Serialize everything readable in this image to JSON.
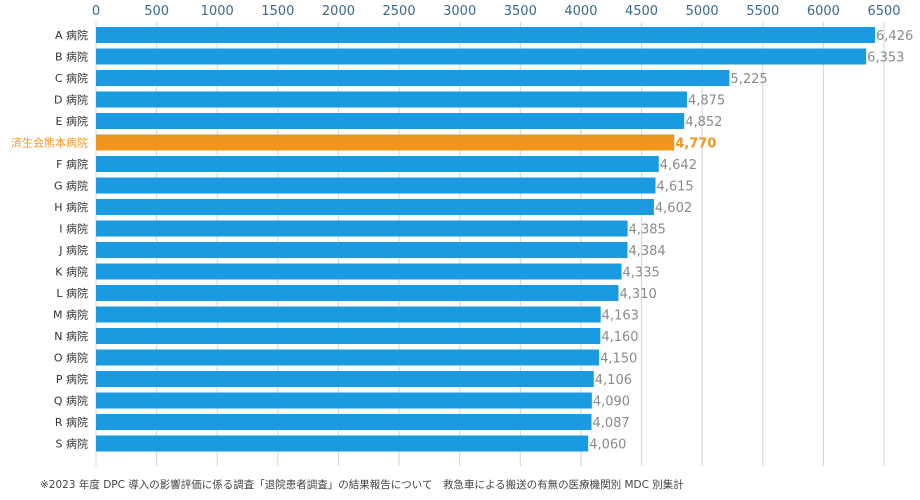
{
  "chart_data": {
    "type": "bar",
    "orientation": "horizontal",
    "categories": [
      "A 病院",
      "B 病院",
      "C 病院",
      "D 病院",
      "E 病院",
      "済生会熊本病院",
      "F 病院",
      "G 病院",
      "H 病院",
      "I 病院",
      "J 病院",
      "K 病院",
      "L 病院",
      "M 病院",
      "N 病院",
      "O 病院",
      "P 病院",
      "Q 病院",
      "R 病院",
      "S 病院"
    ],
    "values": [
      6426,
      6353,
      5225,
      4875,
      4852,
      4770,
      4642,
      4615,
      4602,
      4385,
      4384,
      4335,
      4310,
      4163,
      4160,
      4150,
      4106,
      4090,
      4087,
      4060
    ],
    "value_labels": [
      "6,426",
      "6,353",
      "5,225",
      "4,875",
      "4,852",
      "4,770",
      "4,642",
      "4,615",
      "4,602",
      "4,385",
      "4,384",
      "4,335",
      "4,310",
      "4,163",
      "4,160",
      "4,150",
      "4,106",
      "4,090",
      "4,087",
      "4,060"
    ],
    "highlight": "済生会熊本病院",
    "xlim": [
      0,
      6500
    ],
    "xticks": [
      0,
      500,
      1000,
      1500,
      2000,
      2500,
      3000,
      3500,
      4000,
      4500,
      5000,
      5500,
      6000,
      6500
    ],
    "xtick_labels": [
      "0",
      "500",
      "1000",
      "1500",
      "2000",
      "2500",
      "3000",
      "3500",
      "4000",
      "4500",
      "5000",
      "5500",
      "6000",
      "6500"
    ],
    "x_axis_position": "top",
    "grid": true,
    "colors": {
      "bar": "#1a9ae0",
      "highlight_bar": "#f0961f",
      "highlight_text": "#f0961f",
      "value_text": "#8a8a8a",
      "tick_text": "#3a6a8e",
      "grid": "#d4d4d4"
    }
  },
  "footnote": "※2023 年度 DPC 導入の影響評価に係る調査「退院患者調査」の結果報告について　救急車による搬送の有無の医療機関別 MDC 別集計"
}
